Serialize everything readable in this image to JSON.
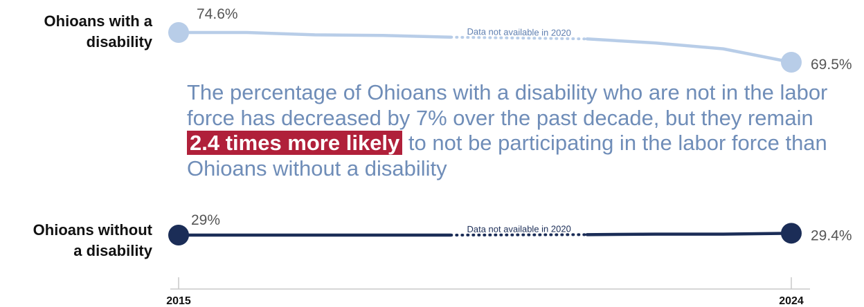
{
  "chart_data": {
    "type": "line",
    "x_start": 2015,
    "x_end": 2024,
    "missing_year": 2020,
    "tick_labels": [
      "2015",
      "2024"
    ],
    "row_labels": [
      "Ohioans with a disability",
      "Ohioans without a disability"
    ],
    "series": [
      {
        "name": "Ohioans with a disability",
        "color": "#b8cde8",
        "values": [
          74.6,
          74.6,
          74.2,
          74.1,
          73.8,
          null,
          73.5,
          72.8,
          71.8,
          69.5
        ],
        "start_label": "74.6%",
        "end_label": "69.5%",
        "gap_note": "Data not available in 2020"
      },
      {
        "name": "Ohioans without a disability",
        "color": "#1b2d57",
        "values": [
          29.0,
          29.0,
          29.0,
          29.0,
          29.0,
          null,
          29.1,
          29.2,
          29.2,
          29.4
        ],
        "start_label": "29%",
        "end_label": "29.4%",
        "gap_note": "Data not available in 2020"
      }
    ]
  },
  "annotation": {
    "before": "The percentage of Ohioans with a disability who are not in the labor force has decreased by 7% over the past decade, but they remain ",
    "highlight": "2.4 times more likely",
    "after": " to not be participating in the labor force than Ohioans without a disability",
    "text_color": "#6f8db8",
    "highlight_color": "#b0203a"
  }
}
